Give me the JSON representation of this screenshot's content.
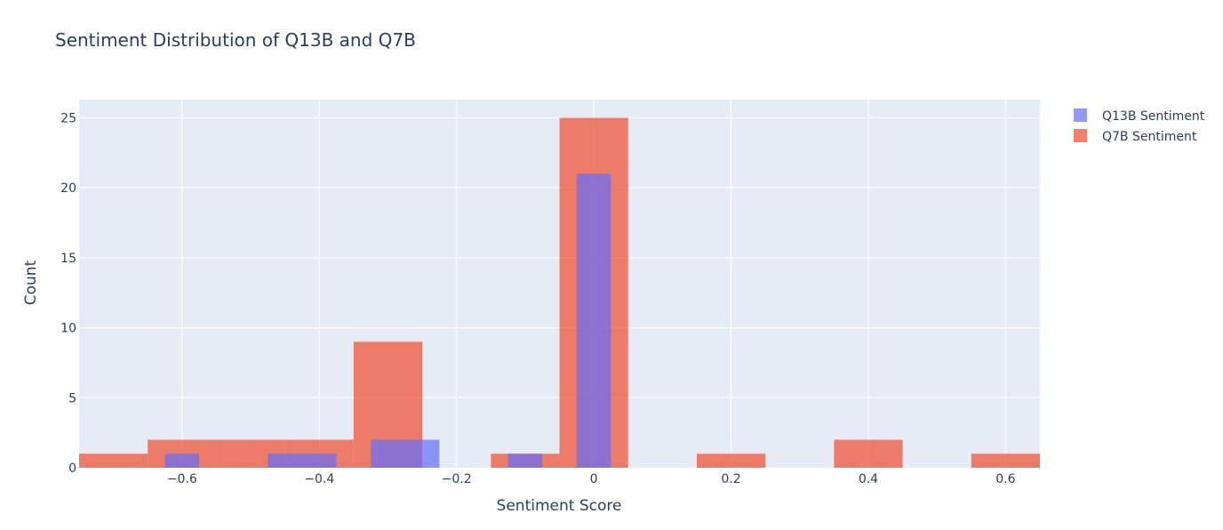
{
  "chart_data": {
    "type": "bar",
    "title": "Sentiment Distribution of Q13B and Q7B",
    "xlabel": "Sentiment Score",
    "ylabel": "Count",
    "xlim": [
      -0.75,
      0.65
    ],
    "ylim": [
      0,
      26.3
    ],
    "x_ticks": [
      -0.6,
      -0.4,
      -0.2,
      0,
      0.2,
      0.4,
      0.6
    ],
    "x_tick_labels": [
      "−0.6",
      "−0.4",
      "−0.2",
      "0",
      "0.2",
      "0.4",
      "0.6"
    ],
    "y_ticks": [
      0,
      5,
      10,
      15,
      20,
      25
    ],
    "y_tick_labels": [
      "0",
      "5",
      "10",
      "15",
      "20",
      "25"
    ],
    "grid": true,
    "legend": "top-right outside",
    "bar_mode": "overlay",
    "series": [
      {
        "name": "Q7B Sentiment",
        "color": "#EF553B",
        "opacity": 0.75,
        "bins": [
          {
            "x0": -0.75,
            "x1": -0.65,
            "count": 1
          },
          {
            "x0": -0.65,
            "x1": -0.55,
            "count": 2
          },
          {
            "x0": -0.55,
            "x1": -0.45,
            "count": 2
          },
          {
            "x0": -0.45,
            "x1": -0.35,
            "count": 2
          },
          {
            "x0": -0.35,
            "x1": -0.25,
            "count": 9
          },
          {
            "x0": -0.15,
            "x1": -0.05,
            "count": 1
          },
          {
            "x0": -0.05,
            "x1": 0.05,
            "count": 25
          },
          {
            "x0": 0.15,
            "x1": 0.25,
            "count": 1
          },
          {
            "x0": 0.35,
            "x1": 0.45,
            "count": 2
          },
          {
            "x0": 0.55,
            "x1": 0.65,
            "count": 1
          }
        ]
      },
      {
        "name": "Q13B Sentiment",
        "color": "#636EFA",
        "opacity": 0.7,
        "bins": [
          {
            "x0": -0.625,
            "x1": -0.575,
            "count": 1
          },
          {
            "x0": -0.475,
            "x1": -0.375,
            "count": 1
          },
          {
            "x0": -0.325,
            "x1": -0.225,
            "count": 2
          },
          {
            "x0": -0.125,
            "x1": -0.075,
            "count": 1
          },
          {
            "x0": -0.025,
            "x1": 0.025,
            "count": 21
          }
        ]
      }
    ],
    "legend_order": [
      "Q13B Sentiment",
      "Q7B Sentiment"
    ]
  }
}
